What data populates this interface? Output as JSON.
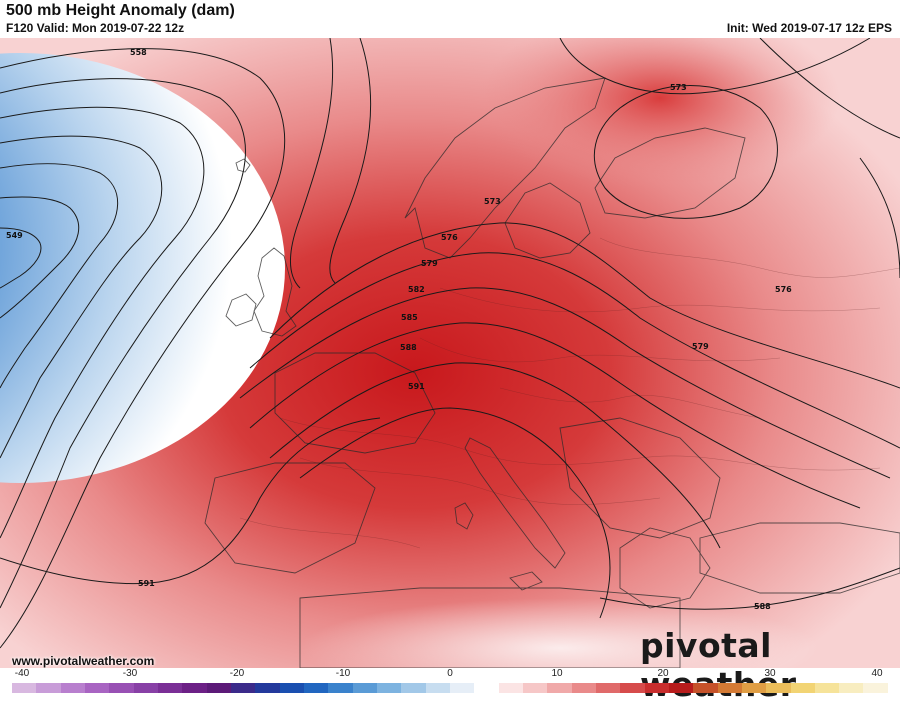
{
  "header": {
    "title": "500 mb Height Anomaly (dam)",
    "valid": "F120 Valid: Mon 2019-07-22 12z",
    "init": "Init: Wed 2019-07-17 12z EPS"
  },
  "contours": {
    "labels": [
      "558",
      "549",
      "573",
      "573",
      "576",
      "579",
      "582",
      "585",
      "588",
      "591",
      "591",
      "576",
      "579",
      "588"
    ]
  },
  "footer": {
    "website": "www.pivotalweather.com",
    "brand": "pivotal weather"
  },
  "colorbar": {
    "ticks": [
      "-40",
      "-30",
      "-20",
      "-10",
      "0",
      "10",
      "20",
      "30",
      "40"
    ],
    "colors": [
      "#d8b8e0",
      "#c89cd8",
      "#b87fce",
      "#a864c2",
      "#9850b4",
      "#8840a6",
      "#7a2f96",
      "#6c2086",
      "#5c1a78",
      "#3b2a8a",
      "#23399c",
      "#1a4fb0",
      "#2166c0",
      "#3a82cc",
      "#5a9bd6",
      "#7db3e0",
      "#a2c8e8",
      "#c7ddf0",
      "#e6eef7",
      "#ffffff",
      "#fbe4e4",
      "#f6c7c7",
      "#f0a9a9",
      "#e98a8a",
      "#e06a6a",
      "#d64b4b",
      "#c92e2e",
      "#b81c1c",
      "#c6522a",
      "#d47a34",
      "#e09e44",
      "#ebbd5a",
      "#f2d474",
      "#f6e39a",
      "#f8edc0",
      "#faf3dc"
    ]
  }
}
